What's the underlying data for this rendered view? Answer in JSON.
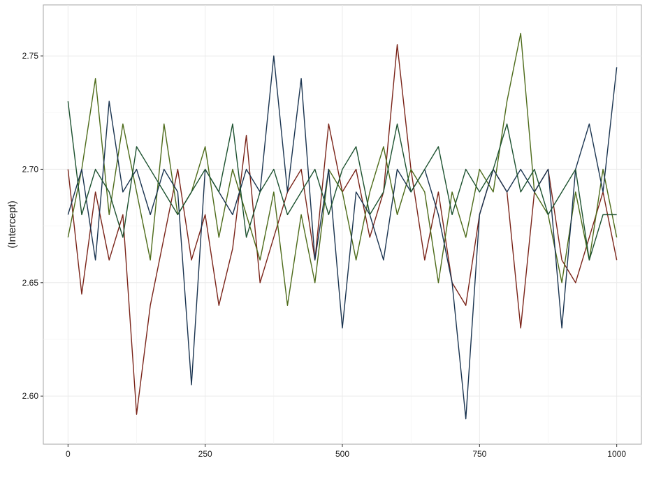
{
  "chart_data": {
    "type": "line",
    "title": "",
    "xlabel": "",
    "ylabel": "(Intercept)",
    "xlim": [
      -45,
      1045
    ],
    "ylim": [
      2.5788,
      2.7725
    ],
    "x_ticks": [
      0,
      250,
      500,
      750,
      1000
    ],
    "x_tick_labels": [
      "0",
      "250",
      "500",
      "750",
      "1000"
    ],
    "y_ticks": [
      2.6,
      2.65,
      2.7,
      2.75
    ],
    "y_tick_labels": [
      "2.60",
      "2.65",
      "2.70",
      "2.75"
    ],
    "grid": true,
    "legend": "none",
    "n_iterations": 1000,
    "series": [
      {
        "color": "#7a2419",
        "x": [
          0,
          25,
          50,
          75,
          100,
          125,
          150,
          175,
          200,
          225,
          250,
          275,
          300,
          325,
          350,
          375,
          400,
          425,
          450,
          475,
          500,
          525,
          550,
          575,
          600,
          625,
          650,
          675,
          700,
          725,
          750,
          775,
          800,
          825,
          850,
          875,
          900,
          925,
          950,
          975,
          1000
        ],
        "values": [
          2.7,
          2.645,
          2.69,
          2.66,
          2.68,
          2.592,
          2.64,
          2.67,
          2.7,
          2.66,
          2.68,
          2.64,
          2.665,
          2.715,
          2.65,
          2.67,
          2.69,
          2.7,
          2.66,
          2.72,
          2.69,
          2.7,
          2.67,
          2.69,
          2.755,
          2.7,
          2.66,
          2.69,
          2.65,
          2.64,
          2.68,
          2.7,
          2.69,
          2.63,
          2.69,
          2.7,
          2.66,
          2.65,
          2.67,
          2.69,
          2.66
        ]
      },
      {
        "color": "#4d6b1a",
        "x": [
          0,
          25,
          50,
          75,
          100,
          125,
          150,
          175,
          200,
          225,
          250,
          275,
          300,
          325,
          350,
          375,
          400,
          425,
          450,
          475,
          500,
          525,
          550,
          575,
          600,
          625,
          650,
          675,
          700,
          725,
          750,
          775,
          800,
          825,
          850,
          875,
          900,
          925,
          950,
          975,
          1000
        ],
        "values": [
          2.67,
          2.7,
          2.74,
          2.68,
          2.72,
          2.69,
          2.66,
          2.72,
          2.68,
          2.69,
          2.71,
          2.67,
          2.7,
          2.68,
          2.66,
          2.69,
          2.64,
          2.68,
          2.65,
          2.7,
          2.69,
          2.66,
          2.69,
          2.71,
          2.68,
          2.7,
          2.69,
          2.65,
          2.69,
          2.67,
          2.7,
          2.69,
          2.73,
          2.76,
          2.69,
          2.68,
          2.65,
          2.69,
          2.66,
          2.7,
          2.67
        ]
      },
      {
        "color": "#1a3450",
        "x": [
          0,
          25,
          50,
          75,
          100,
          125,
          150,
          175,
          200,
          225,
          250,
          275,
          300,
          325,
          350,
          375,
          400,
          425,
          450,
          475,
          500,
          525,
          550,
          575,
          600,
          625,
          650,
          675,
          700,
          725,
          750,
          775,
          800,
          825,
          850,
          875,
          900,
          925,
          950,
          975,
          1000
        ],
        "values": [
          2.68,
          2.7,
          2.66,
          2.73,
          2.69,
          2.7,
          2.68,
          2.7,
          2.69,
          2.605,
          2.7,
          2.69,
          2.68,
          2.7,
          2.69,
          2.75,
          2.69,
          2.74,
          2.66,
          2.7,
          2.63,
          2.69,
          2.68,
          2.66,
          2.7,
          2.69,
          2.7,
          2.68,
          2.65,
          2.59,
          2.68,
          2.7,
          2.69,
          2.7,
          2.69,
          2.7,
          2.63,
          2.7,
          2.72,
          2.69,
          2.745
        ]
      },
      {
        "color": "#1d5230",
        "x": [
          0,
          25,
          50,
          75,
          100,
          125,
          150,
          175,
          200,
          225,
          250,
          275,
          300,
          325,
          350,
          375,
          400,
          425,
          450,
          475,
          500,
          525,
          550,
          575,
          600,
          625,
          650,
          675,
          700,
          725,
          750,
          775,
          800,
          825,
          850,
          875,
          900,
          925,
          950,
          975,
          1000
        ],
        "values": [
          2.73,
          2.68,
          2.7,
          2.69,
          2.67,
          2.71,
          2.7,
          2.69,
          2.68,
          2.69,
          2.7,
          2.69,
          2.72,
          2.67,
          2.69,
          2.7,
          2.68,
          2.69,
          2.7,
          2.68,
          2.7,
          2.71,
          2.68,
          2.69,
          2.72,
          2.69,
          2.7,
          2.71,
          2.68,
          2.7,
          2.69,
          2.7,
          2.72,
          2.69,
          2.7,
          2.68,
          2.69,
          2.7,
          2.66,
          2.68,
          2.68
        ]
      }
    ]
  }
}
